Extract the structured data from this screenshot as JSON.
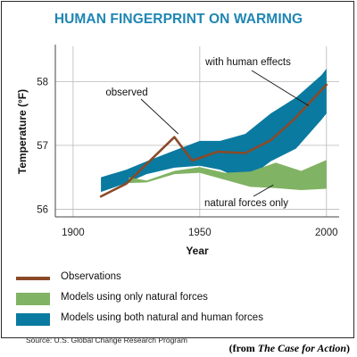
{
  "title": "HUMAN FINGERPRINT ON WARMING",
  "chart_data": {
    "type": "area",
    "title": "HUMAN FINGERPRINT ON WARMING",
    "xlabel": "Year",
    "ylabel": "Temperature (°F)",
    "xlim": [
      1893,
      2005
    ],
    "ylim": [
      55.88,
      58.55
    ],
    "xticks": [
      1900,
      1950,
      2000
    ],
    "yticks": [
      56,
      57,
      58
    ],
    "grid": true,
    "series": [
      {
        "name": "Observations",
        "type": "line",
        "color": "#8a4a28",
        "x": [
          1911,
          1921,
          1940,
          1947,
          1957,
          1968,
          1978,
          1987,
          2000
        ],
        "y": [
          56.2,
          56.4,
          57.13,
          56.76,
          56.9,
          56.88,
          57.08,
          57.4,
          57.95
        ]
      },
      {
        "name": "Models using both natural and human forces",
        "type": "band",
        "color": "#0a7aa0",
        "x": [
          1911,
          1921,
          1929,
          1940,
          1950,
          1958,
          1968,
          1978,
          1988,
          1998,
          2000
        ],
        "upper": [
          56.5,
          56.62,
          56.75,
          56.92,
          57.07,
          57.07,
          57.18,
          57.5,
          57.75,
          58.1,
          58.2
        ],
        "lower": [
          56.27,
          56.41,
          56.55,
          56.65,
          56.68,
          56.62,
          56.45,
          56.75,
          56.95,
          57.4,
          57.5
        ]
      },
      {
        "name": "Models using only natural forces",
        "type": "band",
        "color": "#80b363",
        "x": [
          1922,
          1929,
          1940,
          1950,
          1960,
          1970,
          1980,
          1990,
          2000
        ],
        "upper": [
          56.5,
          56.45,
          56.6,
          56.66,
          56.57,
          56.59,
          56.73,
          56.6,
          56.77
        ],
        "lower": [
          56.41,
          56.42,
          56.55,
          56.57,
          56.46,
          56.35,
          56.33,
          56.3,
          56.32
        ]
      }
    ],
    "annotations": [
      {
        "text": "with human effects",
        "anchor": {
          "x": 1993,
          "y": 57.62
        }
      },
      {
        "text": "observed",
        "anchor": {
          "x": 1941.5,
          "y": 57.18
        }
      },
      {
        "text": "natural forces only",
        "anchor": {
          "x": 1979,
          "y": 56.38
        }
      }
    ]
  },
  "legend": [
    {
      "label": "Observations",
      "kind": "line",
      "color": "#8a4a28"
    },
    {
      "label": "Models using only natural forces",
      "kind": "box",
      "color": "#80b363"
    },
    {
      "label": "Models using both natural and human forces",
      "kind": "box",
      "color": "#0a7aa0"
    }
  ],
  "source": "Source: U.S. Global Change Research Program",
  "credit": {
    "prefix": "(from ",
    "book": "The Case for Action",
    "suffix": ")"
  }
}
